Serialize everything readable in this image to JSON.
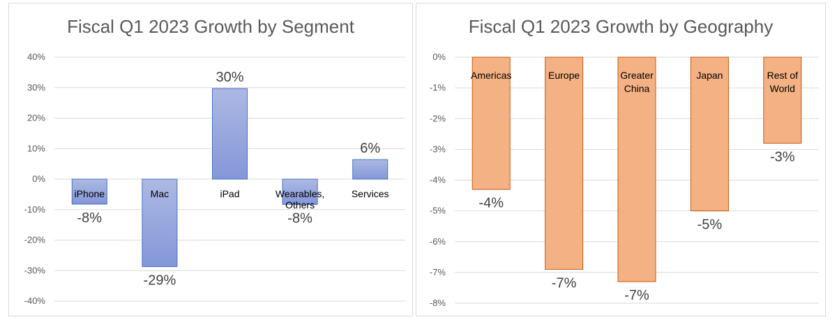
{
  "charts": [
    {
      "type": "bar",
      "title": "Fiscal Q1 2023 Growth by Segment",
      "categories": [
        "iPhone",
        "Mac",
        "iPad",
        "Wearables, Others",
        "Services"
      ],
      "category_lines": [
        [
          "iPhone"
        ],
        [
          "Mac"
        ],
        [
          "iPad"
        ],
        [
          "Wearables,",
          "Others"
        ],
        [
          "Services"
        ]
      ],
      "values": [
        -8.2,
        -28.7,
        29.7,
        -8.3,
        6.4
      ],
      "data_labels": [
        "-8%",
        "-29%",
        "30%",
        "-8%",
        "6%"
      ],
      "ylim": [
        -40,
        40
      ],
      "ticks": [
        40,
        30,
        20,
        10,
        0,
        -10,
        -20,
        -30,
        -40
      ],
      "tick_labels": [
        "40%",
        "30%",
        "20%",
        "10%",
        "0%",
        "-10%",
        "-20%",
        "-30%",
        "-40%"
      ],
      "grid": true,
      "colors": {
        "fill_top": "#adb9e3",
        "fill_bottom": "#8497d8",
        "stroke": "#4472c4"
      }
    },
    {
      "type": "bar",
      "title": "Fiscal Q1 2023 Growth by Geography",
      "categories": [
        "Americas",
        "Europe",
        "Greater China",
        "Japan",
        "Rest of World"
      ],
      "category_lines": [
        [
          "Americas"
        ],
        [
          "Europe"
        ],
        [
          "Greater",
          "China"
        ],
        [
          "Japan"
        ],
        [
          "Rest of",
          "World"
        ]
      ],
      "values": [
        -4.3,
        -6.9,
        -7.3,
        -5.0,
        -2.8
      ],
      "data_labels": [
        "-4%",
        "-7%",
        "-7%",
        "-5%",
        "-3%"
      ],
      "ylim": [
        -8,
        0
      ],
      "ticks": [
        0,
        -1,
        -2,
        -3,
        -4,
        -5,
        -6,
        -7,
        -8
      ],
      "tick_labels": [
        "0%",
        "-1%",
        "-2%",
        "-3%",
        "-4%",
        "-5%",
        "-6%",
        "-7%",
        "-8%"
      ],
      "grid": true,
      "colors": {
        "fill_top": "#f4b183",
        "fill_bottom": "#f4b183",
        "stroke": "#c55a11"
      }
    }
  ]
}
